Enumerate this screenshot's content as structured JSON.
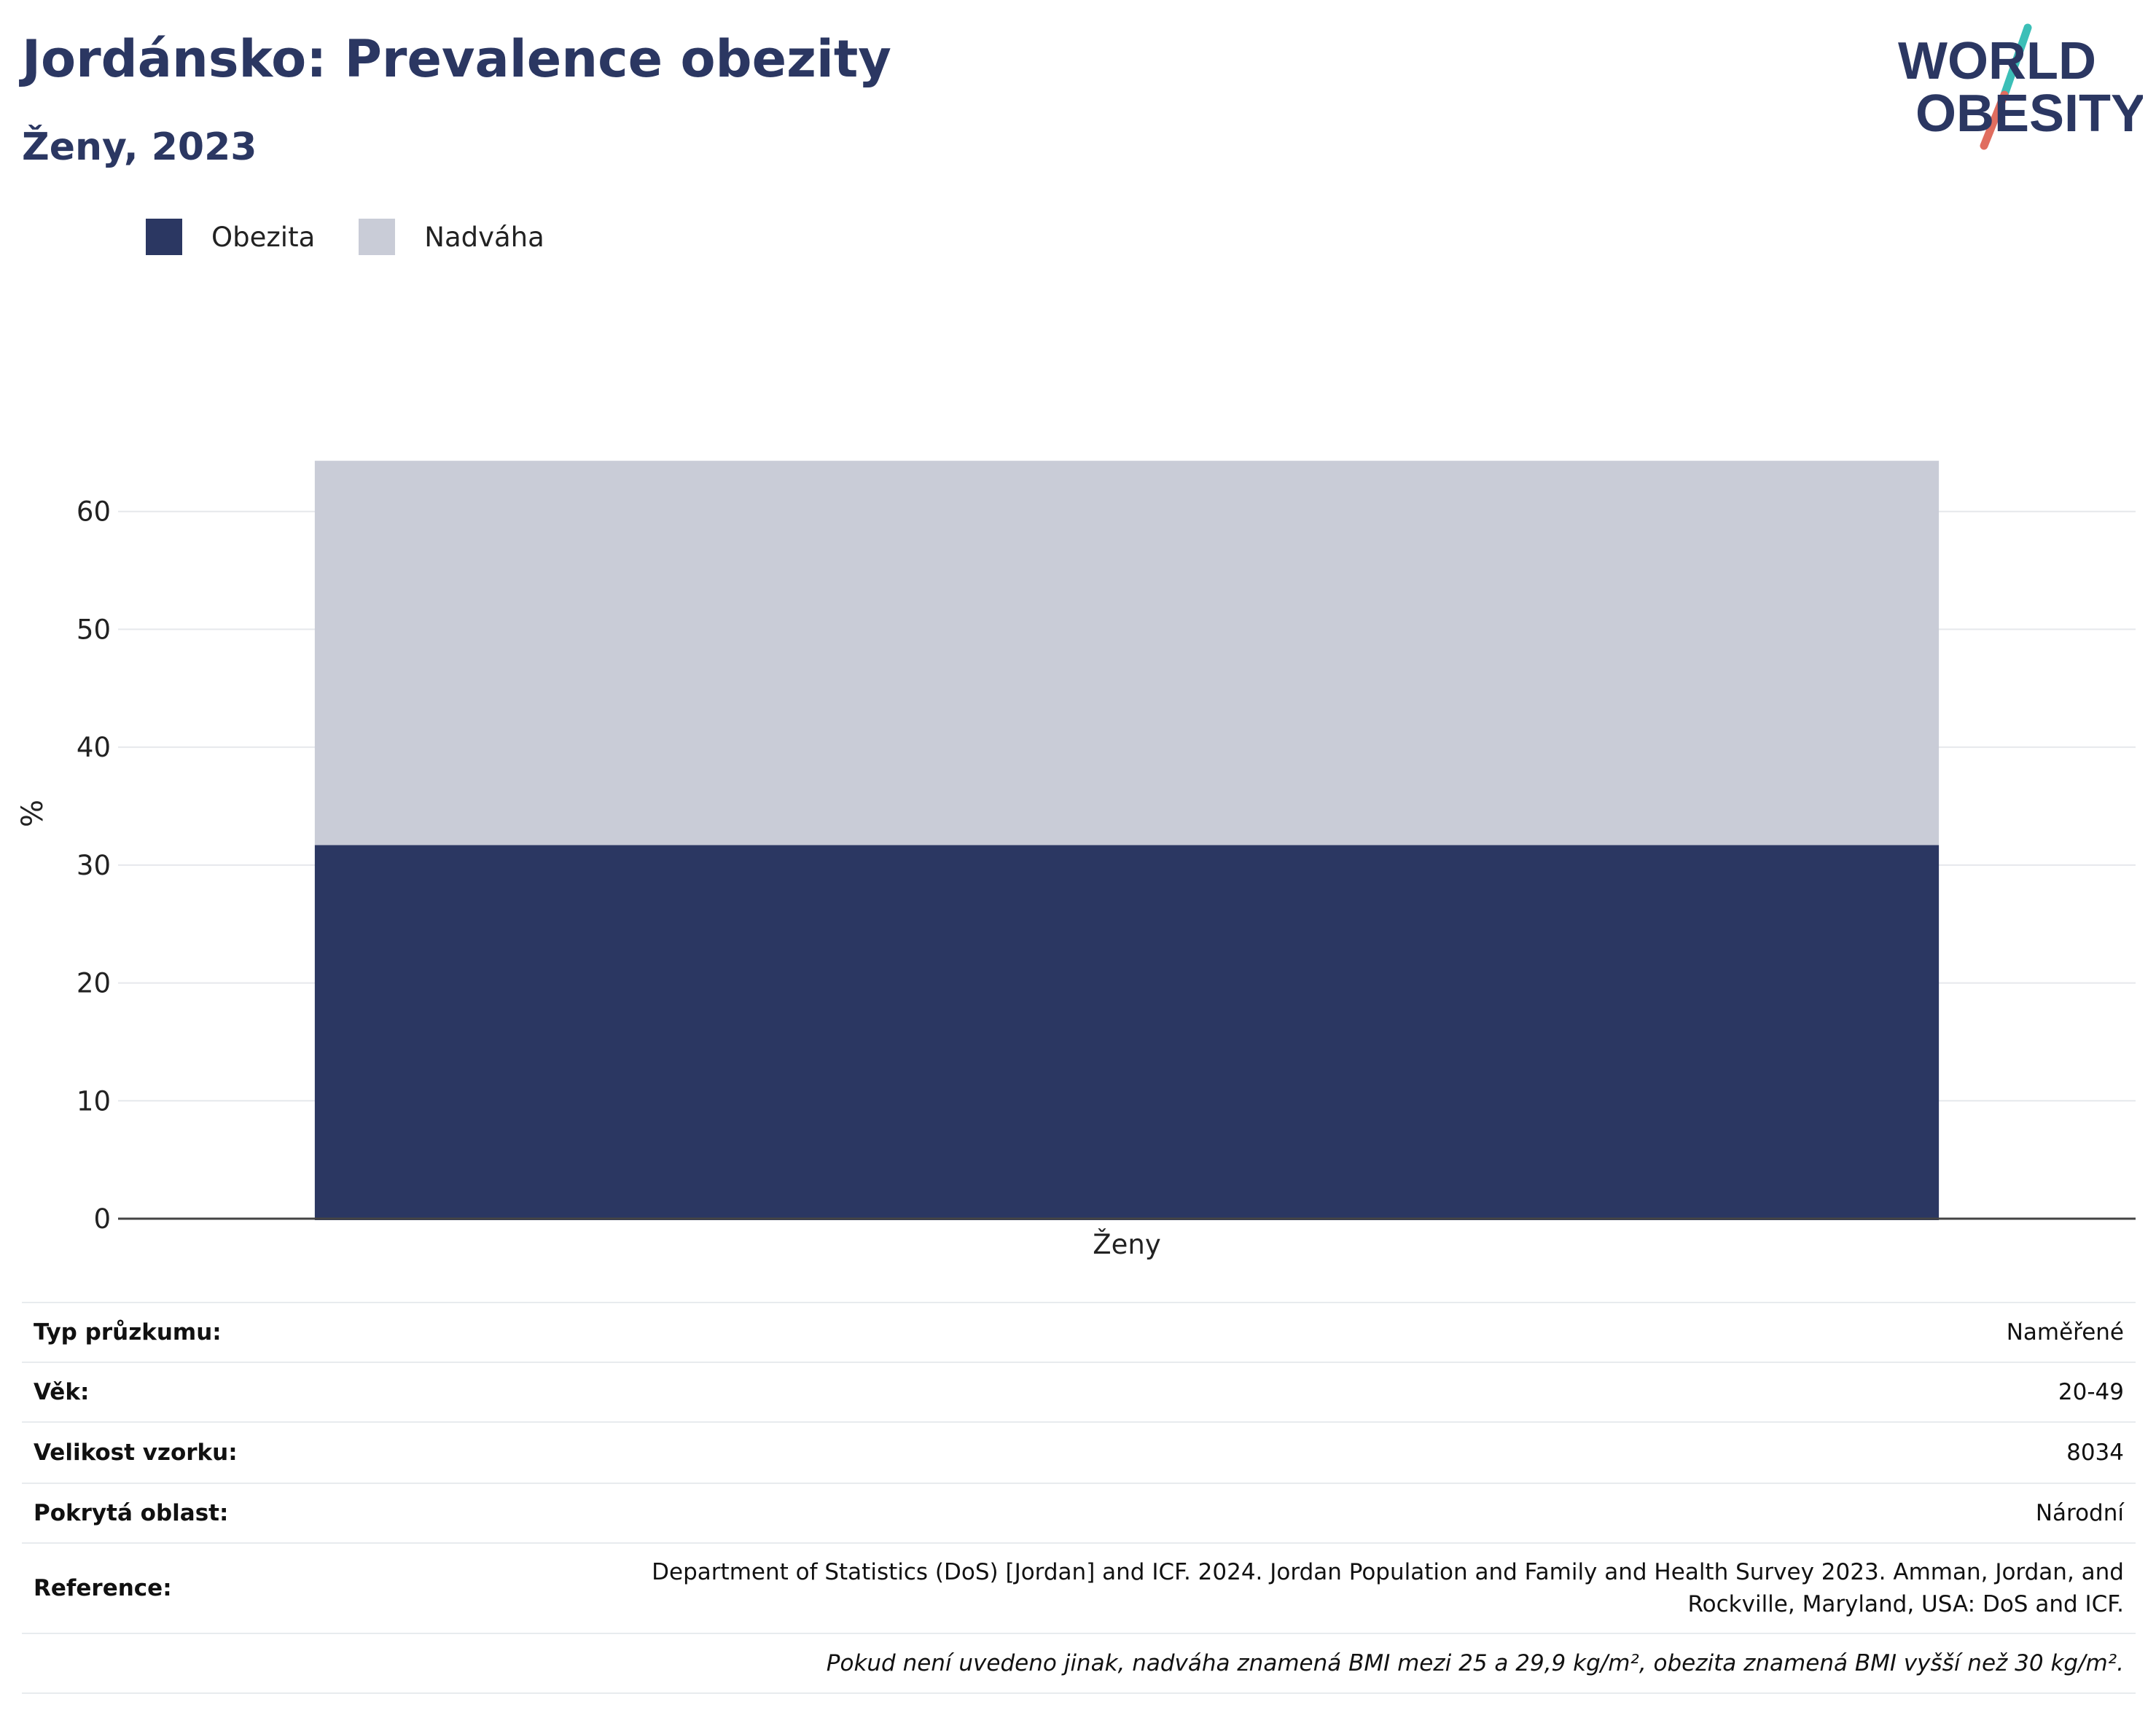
{
  "header": {
    "title": "Jordánsko: Prevalence obezity",
    "subtitle": "Ženy, 2023",
    "logo_line1": "WORLD",
    "logo_line2": "OBESITY"
  },
  "legend": [
    {
      "label": "Obezita",
      "color": "#2b3762"
    },
    {
      "label": "Nadváha",
      "color": "#c9ccd7"
    }
  ],
  "chart_data": {
    "type": "bar",
    "stacked": true,
    "categories": [
      "Ženy"
    ],
    "series": [
      {
        "name": "Obezita",
        "values": [
          31.7
        ],
        "color": "#2b3762"
      },
      {
        "name": "Nadváha",
        "values": [
          32.6
        ],
        "color": "#c9ccd7"
      }
    ],
    "ylabel": "%",
    "xlabel": "",
    "ylim": [
      0,
      70
    ],
    "yticks": [
      0,
      10,
      20,
      30,
      40,
      50,
      60
    ],
    "grid": true,
    "legend_position": "top-left"
  },
  "info": [
    {
      "label": "Typ průzkumu:",
      "value": "Naměřené"
    },
    {
      "label": "Věk:",
      "value": "20-49"
    },
    {
      "label": "Velikost vzorku:",
      "value": "8034"
    },
    {
      "label": "Pokrytá oblast:",
      "value": "Národní"
    },
    {
      "label": "Reference:",
      "value": "Department of Statistics (DoS) [Jordan] and ICF. 2024. Jordan Population and Family and Health Survey 2023. Amman, Jordan, and Rockville, Maryland, USA: DoS and ICF."
    }
  ],
  "note": "Pokud není uvedeno jinak, nadváha znamená BMI mezi 25 a 29,9 kg/m², obezita znamená BMI vyšší než 30 kg/m²."
}
